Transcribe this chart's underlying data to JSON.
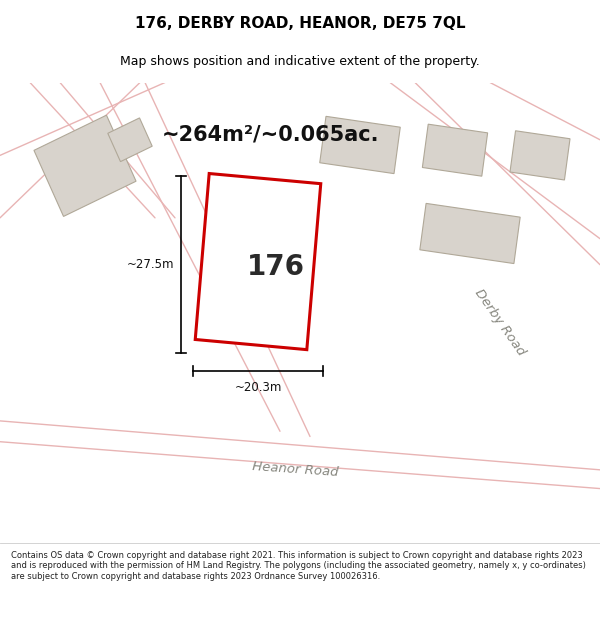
{
  "title": "176, DERBY ROAD, HEANOR, DE75 7QL",
  "subtitle": "Map shows position and indicative extent of the property.",
  "area_text": "~264m²/~0.065ac.",
  "plot_number": "176",
  "dim_width": "~20.3m",
  "dim_height": "~27.5m",
  "footer": "Contains OS data © Crown copyright and database right 2021. This information is subject to Crown copyright and database rights 2023 and is reproduced with the permission of HM Land Registry. The polygons (including the associated geometry, namely x, y co-ordinates) are subject to Crown copyright and database rights 2023 Ordnance Survey 100026316.",
  "map_bg": "#f0eeea",
  "road_color": "#e8b4b4",
  "plot_outline_color": "#cc0000",
  "neighbor_fill": "#d8d3cc",
  "neighbor_edge": "#b0a898",
  "road_label1": "Heanor Road",
  "road_label2": "Derby Road",
  "title_fontsize": 11,
  "subtitle_fontsize": 9,
  "footer_fontsize": 6.0
}
